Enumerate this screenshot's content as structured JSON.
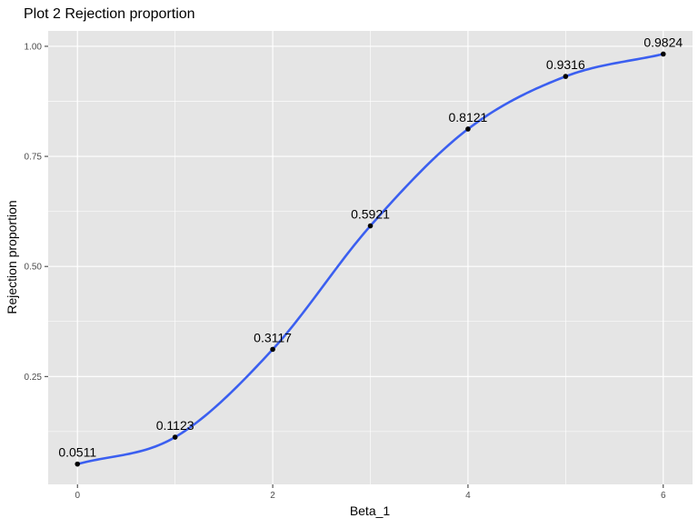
{
  "chart_data": {
    "type": "line",
    "title": "Plot 2 Rejection proportion",
    "xlabel": "Beta_1",
    "ylabel": "Rejection proportion",
    "xlim": [
      -0.3,
      6.3
    ],
    "ylim": [
      0.005,
      1.035
    ],
    "x_ticks": [
      0,
      2,
      4,
      6
    ],
    "x_tick_labels": [
      "0",
      "2",
      "4",
      "6"
    ],
    "y_ticks": [
      0.25,
      0.5,
      0.75,
      1.0
    ],
    "y_tick_labels": [
      "0.25",
      "0.50",
      "0.75",
      "1.00"
    ],
    "grid": true,
    "series": [
      {
        "x": [
          0,
          1,
          2,
          3,
          4,
          5,
          6
        ],
        "values": [
          0.0511,
          0.1123,
          0.3117,
          0.5921,
          0.8121,
          0.9316,
          0.9824
        ],
        "labels": [
          "0.0511",
          "0.1123",
          "0.3117",
          "0.5921",
          "0.8121",
          "0.9316",
          "0.9824"
        ]
      }
    ],
    "colors": {
      "panel": "#e5e5e5",
      "grid": "#ffffff",
      "smooth_line": "#3b5ff0",
      "points": "#000000"
    }
  }
}
